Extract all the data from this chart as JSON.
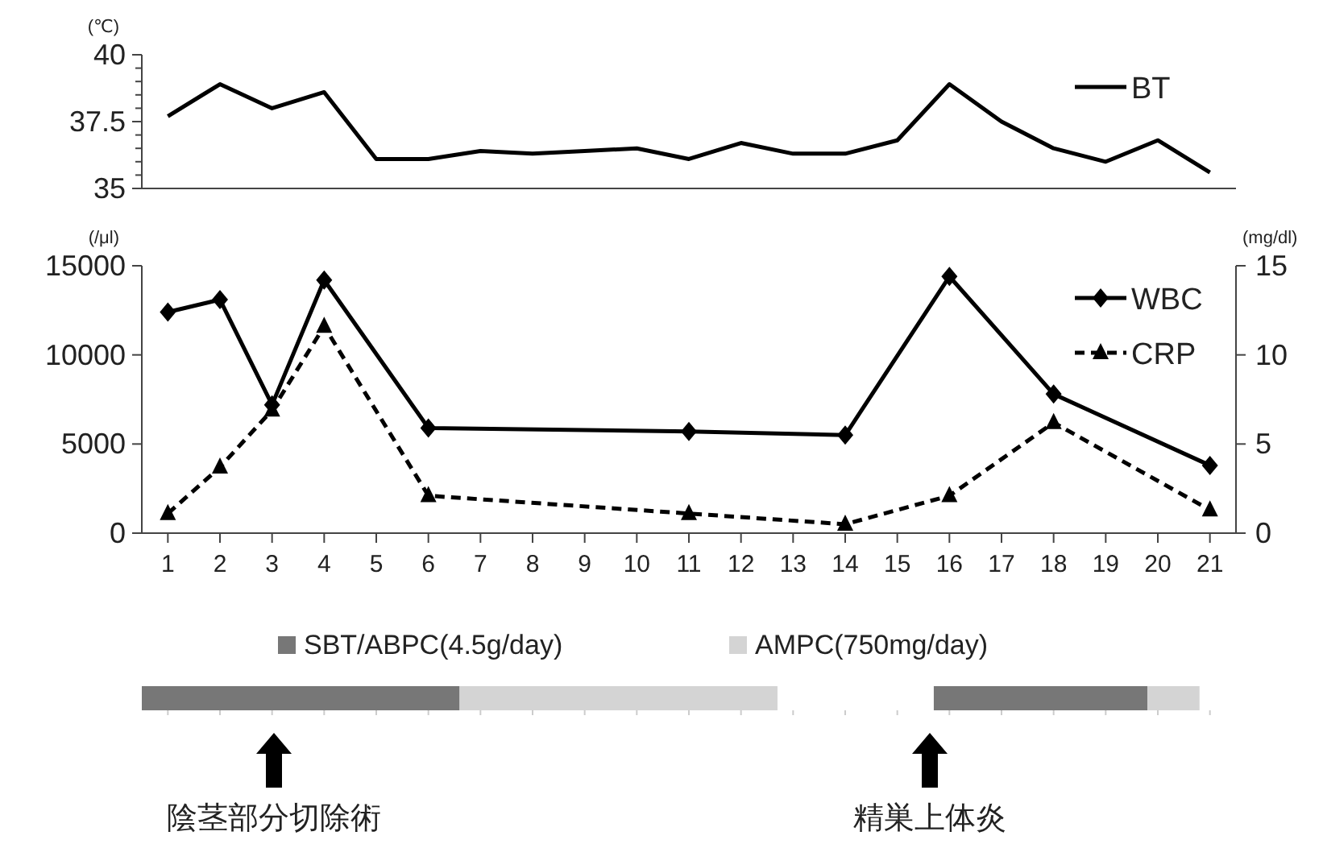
{
  "chart_data": [
    {
      "type": "line",
      "ylabel": "(℃)",
      "x": [
        1,
        2,
        3,
        4,
        5,
        6,
        7,
        8,
        9,
        10,
        11,
        12,
        13,
        14,
        15,
        16,
        17,
        18,
        19,
        20,
        21
      ],
      "xlim": [
        0.5,
        21.5
      ],
      "ylim": [
        35,
        40
      ],
      "yticks": [
        35,
        {
          "value": 35.5,
          "label": null
        },
        {
          "value": 36,
          "label": null
        },
        {
          "value": 36.5,
          "label": null
        },
        {
          "value": 37,
          "label": null
        },
        37.5,
        {
          "value": 38,
          "label": null
        },
        {
          "value": 38.5,
          "label": null
        },
        {
          "value": 39,
          "label": null
        },
        {
          "value": 39.5,
          "label": null
        },
        40
      ],
      "tick_labels": "y",
      "legend": "top right",
      "series": [
        {
          "name": "BT",
          "color": "#000000",
          "marker": "none",
          "line_style": "solid",
          "values": [
            37.7,
            38.9,
            38.0,
            38.6,
            36.1,
            36.1,
            36.4,
            36.3,
            36.4,
            36.5,
            36.1,
            36.7,
            36.3,
            36.3,
            36.8,
            38.9,
            37.5,
            36.5,
            36.0,
            36.8,
            35.6
          ]
        }
      ]
    },
    {
      "type": "line",
      "ylabel": "(/μl)",
      "y2label": "(mg/dl)",
      "x": [
        1,
        2,
        3,
        4,
        6,
        11,
        14,
        16,
        18,
        21
      ],
      "xlim": [
        0.5,
        21.5
      ],
      "xticks": [
        1,
        2,
        3,
        4,
        5,
        6,
        7,
        8,
        9,
        10,
        11,
        12,
        13,
        14,
        15,
        16,
        17,
        18,
        19,
        20,
        21
      ],
      "ylim": [
        0,
        15000
      ],
      "yticks": [
        0,
        5000,
        10000,
        15000
      ],
      "y2lim": [
        0,
        15
      ],
      "y2ticks": [
        0,
        5,
        10,
        15
      ],
      "legend": "top right",
      "series": [
        {
          "name": "WBC",
          "color": "#000000",
          "marker": "diamond",
          "line_style": "solid",
          "values": [
            12400,
            13100,
            7200,
            14200,
            5900,
            5700,
            5500,
            14400,
            7800,
            3800
          ]
        },
        {
          "name": "CRP",
          "color": "#000000",
          "marker": "triangle",
          "line_style": "dashed",
          "axis": "y2",
          "values": [
            1.1,
            3.7,
            6.9,
            11.6,
            2.1,
            1.1,
            0.5,
            2.1,
            6.2,
            1.3
          ]
        }
      ]
    },
    {
      "type": "bar",
      "orientation": "horizontal",
      "categories": [
        null
      ],
      "xticks": [
        1,
        2,
        3,
        4,
        5,
        6,
        7,
        8,
        9,
        10,
        11,
        12,
        13,
        14,
        15,
        16,
        17,
        18,
        19,
        20,
        21
      ],
      "tick_labels": false,
      "legend": "top",
      "series": [
        {
          "name": "SBT/ABPC(4.5g/day)",
          "color": "#777777",
          "base": [
            0.5
          ],
          "values": [
            6.1
          ]
        },
        {
          "name": "AMPC(750mg/day)",
          "color": "#d4d4d4",
          "base": [
            6.6
          ],
          "values": [
            6.1
          ]
        },
        {
          "color": "#777777",
          "base": [
            15.7
          ],
          "values": [
            4.1
          ]
        },
        {
          "color": "#d4d4d4",
          "base": [
            19.8
          ],
          "values": [
            1.0
          ]
        }
      ],
      "annotations": [
        "陰茎部分切除術",
        "精巣上体炎"
      ]
    }
  ]
}
